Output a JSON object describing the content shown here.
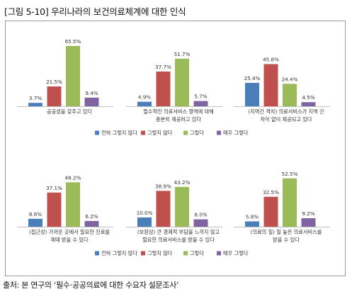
{
  "figure": {
    "title": "[그림 5-10] 우리나라의 보건의료체계에 대한 인식",
    "source": "출처: 본 연구의 ‘필수·공공의료에 대한 수요자 설문조사’"
  },
  "colors": {
    "series": [
      "#4a7ebb",
      "#c0504d",
      "#9bbb59",
      "#8064a2"
    ],
    "frame": "#9a9a9a",
    "axis": "#bfbfbf"
  },
  "chart_data": [
    {
      "type": "bar",
      "categories": [
        "전혀 그렇지 않다",
        "그렇지 않다",
        "그렇다",
        "매우 그렇다"
      ],
      "series": [
        {
          "name": "",
          "values": [
            3.7,
            21.5,
            65.5,
            9.4
          ]
        }
      ],
      "value_labels": [
        "3.7%",
        "21.5%",
        "65.5%",
        "9.4%"
      ],
      "title": "",
      "xlabel": "공공성을 갖추고 있다",
      "ylabel": "",
      "ylim": [
        0,
        70
      ],
      "legend": "none",
      "grid": false
    },
    {
      "type": "bar",
      "categories": [
        "전혀 그렇지 않다",
        "그렇지 않다",
        "그렇다",
        "매우 그렇다"
      ],
      "series": [
        {
          "name": "",
          "values": [
            4.9,
            37.7,
            51.7,
            5.7
          ]
        }
      ],
      "value_labels": [
        "4.9%",
        "37.7%",
        "51.7%",
        "5.7%"
      ],
      "title": "",
      "xlabel": "필수적인 의료서비스 영역에 대해 충분히 제공하고 있다",
      "ylabel": "",
      "ylim": [
        0,
        70
      ],
      "legend": "none",
      "grid": false
    },
    {
      "type": "bar",
      "categories": [
        "전혀 그렇지 않다",
        "그렇지 않다",
        "그렇다",
        "매우 그렇다"
      ],
      "series": [
        {
          "name": "",
          "values": [
            25.4,
            45.8,
            24.4,
            4.5
          ]
        }
      ],
      "value_labels": [
        "25.4%",
        "45.8%",
        "24.4%",
        "4.5%"
      ],
      "title": "",
      "xlabel": "(지역간 격차) 의료서비스가 지역 간 차이 없이 제공되고 있다",
      "ylabel": "",
      "ylim": [
        0,
        70
      ],
      "legend": "none",
      "grid": false
    },
    {
      "type": "bar",
      "categories": [
        "전혀 그렇지 않다",
        "그렇지 않다",
        "그렇다",
        "매우 그렇다"
      ],
      "series": [
        {
          "name": "",
          "values": [
            8.6,
            37.1,
            48.2,
            6.2
          ]
        }
      ],
      "value_labels": [
        "8.6%",
        "37.1%",
        "48.2%",
        "6.2%"
      ],
      "title": "",
      "xlabel": "(접근성) 가까운 곳에서 필요한 진료를 제때 받을 수 있다",
      "ylabel": "",
      "ylim": [
        0,
        70
      ],
      "legend": "none",
      "grid": false
    },
    {
      "type": "bar",
      "categories": [
        "전혀 그렇지 않다",
        "그렇지 않다",
        "그렇다",
        "매우 그렇다"
      ],
      "series": [
        {
          "name": "",
          "values": [
            10.0,
            38.9,
            43.2,
            8.0
          ]
        }
      ],
      "value_labels": [
        "10.0%",
        "38.9%",
        "43.2%",
        "8.0%"
      ],
      "title": "",
      "xlabel": "(보장성) 큰 경제적 부담을 느끼지 않고 필요한 의료서비스를 받을 수 있다",
      "ylabel": "",
      "ylim": [
        0,
        70
      ],
      "legend": "none",
      "grid": false
    },
    {
      "type": "bar",
      "categories": [
        "전혀 그렇지 않다",
        "그렇지 않다",
        "그렇다",
        "매우 그렇다"
      ],
      "series": [
        {
          "name": "",
          "values": [
            5.8,
            32.5,
            52.5,
            9.2
          ]
        }
      ],
      "value_labels": [
        "5.8%",
        "32.5%",
        "52.5%",
        "9.2%"
      ],
      "title": "",
      "xlabel": "(의료의 질) 질 높은 의료서비스를 받을 수 있다",
      "ylabel": "",
      "ylim": [
        0,
        70
      ],
      "legend": "none",
      "grid": false
    }
  ],
  "panel_captions": [
    [
      "공공성을 갖추고 있다"
    ],
    [
      "필수적인 의료서비스 영역에 대해",
      "충분히 제공하고 있다"
    ],
    [
      "(지역간 격차) 의료서비스가 지역 간",
      "차이 없이 제공되고 있다"
    ],
    [
      "(접근성) 가까운 곳에서 필요한 진료를",
      "제때 받을 수 있다"
    ],
    [
      "(보장성) 큰 경제적 부담을 느끼지 않고",
      "필요한 의료서비스를 받을 수 있다"
    ],
    [
      "(의료의 질) 질 높은 의료서비스를",
      "받을 수 있다"
    ]
  ],
  "legend_rows": [
    [
      "전혀 그렇지 않다",
      "그렇지 않다",
      "그렇다",
      "매우 그렇다"
    ],
    [
      "전혀 그렇지 않다",
      "그렇지 않다",
      "그렇다",
      "매우 그렇다"
    ]
  ]
}
